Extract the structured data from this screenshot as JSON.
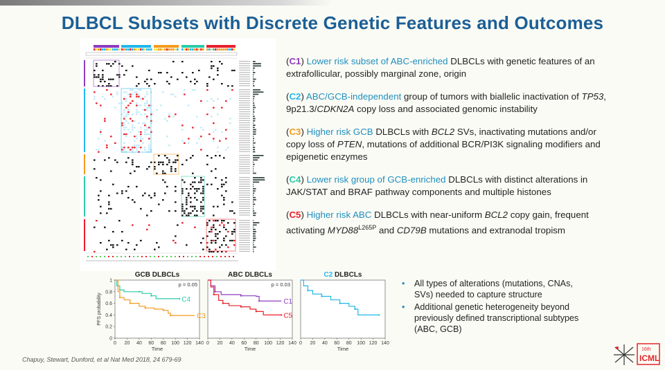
{
  "slide": {
    "title": "DLBCL Subsets with Discrete Genetic Features and Outcomes",
    "citation": "Chapuy, Stewart, Dunford, et al Nat Med 2018, 24 679-69",
    "logo": {
      "text_top": "16th",
      "text_main": "ICML",
      "color": "#e3262b"
    }
  },
  "colors": {
    "title": "#1b5f96",
    "highlight": "#1f8fbf",
    "C1": "#8e3bbf",
    "C2": "#22b7ea",
    "C3": "#f39a1e",
    "C4": "#2cc9a6",
    "C5": "#e8202a"
  },
  "descriptions": [
    {
      "tag": "C1",
      "highlight": "Lower risk subset of ABC-enriched",
      "rest": " DLBCLs with genetic features of an extrafollicular, possibly marginal zone, origin"
    },
    {
      "tag": "C2",
      "highlight": "ABC/GCB-independent",
      "rest1": " group of tumors with biallelic inactivation of ",
      "i1": "TP53",
      "rest2": ", 9p21.3/",
      "i2": "CDKN2A",
      "rest3": " copy loss and associated genomic instability"
    },
    {
      "tag": "C3",
      "highlight": "Higher risk GCB",
      "rest1": " DLBCLs with ",
      "i1": "BCL2",
      "rest2": " SVs, inactivating mutations and/or copy loss of ",
      "i2": "PTEN",
      "rest3": ", mutations of additional BCR/PI3K signaling modifiers and epigenetic enzymes"
    },
    {
      "tag": "C4",
      "highlight": "Lower risk group of GCB-enriched",
      "rest": " DLBCLs with distinct alterations in JAK/STAT and BRAF pathway components and multiple histones"
    },
    {
      "tag": "C5",
      "highlight": "Higher risk ABC",
      "rest1": " DLBCLs with near-uniform ",
      "i1": "BCL2",
      "rest2": " copy gain, frequent activating ",
      "i2": "MYD88",
      "sup": "L265P",
      "rest3": " and ",
      "i3": "CD79B",
      "rest4": " mutations and extranodal tropism"
    }
  ],
  "bullets": [
    "All types of alterations (mutations, CNAs, SVs) needed to capture structure",
    "Additional genetic heterogeneity beyond previously defined transcriptional subtypes (ABC, GCB)"
  ],
  "heatmap": {
    "cluster_labels": [
      "C1",
      "C2",
      "C3",
      "C4",
      "C5"
    ]
  },
  "chart_data": [
    {
      "type": "line",
      "title": "GCB DLBCLs",
      "xlabel": "Time",
      "ylabel": "PFS probability",
      "xlim": [
        0,
        140
      ],
      "ylim": [
        0,
        1
      ],
      "xticks": [
        0,
        20,
        40,
        60,
        80,
        100,
        120,
        140
      ],
      "yticks": [
        0,
        0.2,
        0.4,
        0.6,
        0.8,
        1
      ],
      "annotation": "p = 0.05",
      "series": [
        {
          "name": "C4",
          "color": "#2cc9a6",
          "x": [
            0,
            3,
            8,
            15,
            40,
            45,
            60,
            68,
            107
          ],
          "y": [
            1,
            0.9,
            0.83,
            0.8,
            0.8,
            0.77,
            0.73,
            0.68,
            0.68
          ]
        },
        {
          "name": "C3",
          "color": "#f39a1e",
          "x": [
            0,
            5,
            8,
            15,
            25,
            40,
            50,
            65,
            80,
            88,
            92,
            132
          ],
          "y": [
            1,
            0.8,
            0.7,
            0.66,
            0.6,
            0.55,
            0.52,
            0.5,
            0.48,
            0.43,
            0.39,
            0.39
          ]
        }
      ]
    },
    {
      "type": "line",
      "title": "ABC DLBCLs",
      "xlabel": "Time",
      "xlim": [
        0,
        140
      ],
      "ylim": [
        0,
        1
      ],
      "xticks": [
        0,
        20,
        40,
        60,
        80,
        100,
        120,
        140
      ],
      "annotation": "p = 0.03",
      "series": [
        {
          "name": "C1",
          "color": "#8e3bbf",
          "x": [
            0,
            5,
            12,
            22,
            55,
            80,
            85,
            122
          ],
          "y": [
            1,
            0.9,
            0.8,
            0.75,
            0.73,
            0.72,
            0.64,
            0.64
          ]
        },
        {
          "name": "C5",
          "color": "#e8202a",
          "x": [
            0,
            5,
            10,
            18,
            25,
            35,
            55,
            70,
            80,
            92,
            122
          ],
          "y": [
            1,
            0.88,
            0.75,
            0.65,
            0.6,
            0.56,
            0.54,
            0.5,
            0.46,
            0.4,
            0.4
          ]
        }
      ]
    },
    {
      "type": "line",
      "title_prefix": "C2",
      "title": "DLBCLs",
      "xlabel": "Time",
      "xlim": [
        0,
        140
      ],
      "ylim": [
        0,
        1
      ],
      "xticks": [
        0,
        20,
        40,
        60,
        80,
        100,
        120,
        140
      ],
      "series": [
        {
          "color": "#22b7ea",
          "x": [
            0,
            5,
            12,
            20,
            35,
            50,
            65,
            80,
            90,
            95,
            130
          ],
          "y": [
            1,
            0.9,
            0.82,
            0.76,
            0.72,
            0.66,
            0.6,
            0.55,
            0.5,
            0.4,
            0.4
          ]
        }
      ]
    }
  ]
}
